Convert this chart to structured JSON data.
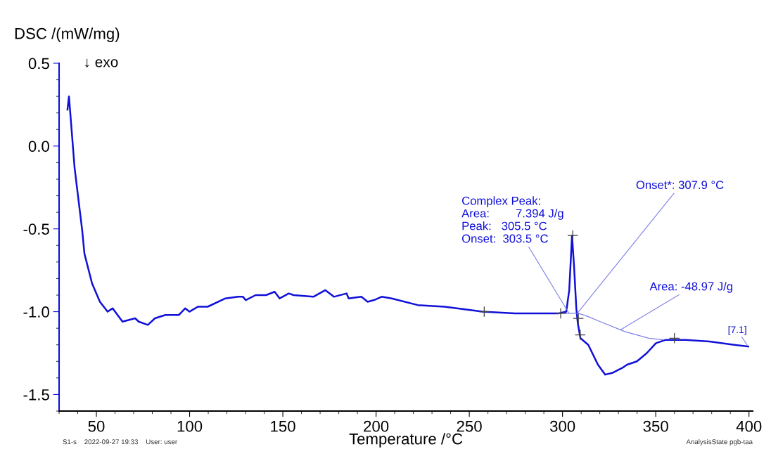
{
  "chart_data": {
    "type": "line",
    "xlabel": "Temperature /°C",
    "ylabel": "DSC /(mW/mg)",
    "xlim": [
      30,
      402
    ],
    "ylim": [
      -1.6,
      0.5
    ],
    "xticks": [
      50,
      100,
      150,
      200,
      250,
      300,
      350,
      400
    ],
    "yticks": [
      {
        "value": 0.5,
        "label": "0.5"
      },
      {
        "value": 0.0,
        "label": "0.0"
      },
      {
        "value": -0.5,
        "label": "-0.5"
      },
      {
        "value": -1.0,
        "label": "-1.0"
      },
      {
        "value": -1.5,
        "label": "-1.5"
      }
    ],
    "grid": false,
    "legend": false,
    "series": [
      {
        "color": "#1010d8",
        "x": [
          34.5,
          35.3,
          38.3,
          42.4,
          43.6,
          47.7,
          51.9,
          56,
          58.7,
          64,
          70.8,
          72.7,
          77.6,
          81.4,
          87,
          94.2,
          97.6,
          99.9,
          104.4,
          109.7,
          119.2,
          126,
          128.6,
          130.1,
          135.4,
          141,
          145.6,
          148.3,
          153.2,
          155.8,
          166.4,
          172.8,
          177.4,
          184.2,
          185.3,
          192.1,
          195.5,
          198.9,
          203,
          208.4,
          222.3,
          236.7,
          257.1,
          274.5,
          297.9,
          302,
          303.6,
          305.1,
          306.2,
          307.4,
          308.2,
          309.6,
          313.8,
          319,
          322.9,
          326.6,
          332,
          334.6,
          339.9,
          345.2,
          350.1,
          355.4,
          366,
          378.8,
          392,
          399.6
        ],
        "values": [
          0.22,
          0.3,
          -0.13,
          -0.51,
          -0.65,
          -0.83,
          -0.94,
          -1.0,
          -0.98,
          -1.06,
          -1.04,
          -1.06,
          -1.08,
          -1.04,
          -1.02,
          -1.02,
          -0.98,
          -1.0,
          -0.97,
          -0.97,
          -0.92,
          -0.91,
          -0.91,
          -0.93,
          -0.9,
          -0.9,
          -0.88,
          -0.92,
          -0.89,
          -0.9,
          -0.91,
          -0.87,
          -0.91,
          -0.89,
          -0.92,
          -0.91,
          -0.94,
          -0.93,
          -0.91,
          -0.92,
          -0.96,
          -0.97,
          -1.0,
          -1.01,
          -1.01,
          -1.0,
          -0.87,
          -0.54,
          -0.73,
          -0.98,
          -1.07,
          -1.16,
          -1.2,
          -1.32,
          -1.38,
          -1.37,
          -1.34,
          -1.32,
          -1.3,
          -1.25,
          -1.19,
          -1.17,
          -1.17,
          -1.18,
          -1.2,
          -1.21
        ]
      },
      {
        "type": "line",
        "color": "#8080e8",
        "x": [
          297.9,
          308.5,
          313.8,
          320.2,
          333.4,
          346.3,
          354.2
        ],
        "values": [
          -1.01,
          -1.01,
          -1.03,
          -1.06,
          -1.12,
          -1.16,
          -1.17
        ]
      },
      {
        "type": "scatter",
        "marker": "cross",
        "color": "#404040",
        "x": [
          258,
          299,
          305.5,
          308.5,
          309.5,
          360
        ],
        "values": [
          -1.0,
          -1.01,
          -0.54,
          -1.04,
          -1.14,
          -1.16
        ]
      }
    ],
    "annotations": [
      "↓ exo",
      {
        "text": "Complex Peak:\nArea:        7.394 J/g\nPeak:   305.5 °C\nOnset:  303.5 °C",
        "x": 303.5,
        "y": -1.01
      },
      {
        "text": "Onset*: 307.9 °C",
        "x": 307.9,
        "y": -1.01
      },
      {
        "text": "Area: -48.97 J/g",
        "x": 331,
        "y": -1.11
      },
      {
        "text": "[7.1]",
        "x": 399,
        "y": -1.2
      },
      "S1-s    2022-09-27 19:33    User: user",
      "AnalysisState pgb-taa"
    ]
  }
}
